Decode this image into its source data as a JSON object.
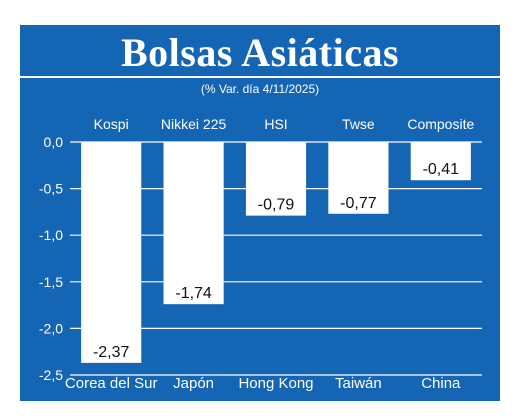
{
  "header": {
    "title": "Bolsas Asiáticas",
    "subtitle": "(% Var. día  4/11/2025)"
  },
  "colors": {
    "background": "#1565b5",
    "bar": "#ffffff",
    "grid": "#ffffff",
    "text": "#ffffff",
    "value_text": "#111111"
  },
  "chart_data": {
    "type": "bar",
    "title": "Bolsas Asiáticas",
    "subtitle": "(% Var. día  4/11/2025)",
    "indices": [
      "Kospi",
      "Nikkei 225",
      "HSI",
      "Twse",
      "Composite"
    ],
    "categories": [
      "Corea del Sur",
      "Japón",
      "Hong Kong",
      "Taiwán",
      "China"
    ],
    "values": [
      -2.37,
      -1.74,
      -0.79,
      -0.77,
      -0.41
    ],
    "value_labels": [
      "-2,37",
      "-1,74",
      "-0,79",
      "-0,77",
      "-0,41"
    ],
    "yticks": [
      0.0,
      -0.5,
      -1.0,
      -1.5,
      -2.0,
      -2.5
    ],
    "ytick_labels": [
      "0,0",
      "-0,5",
      "-1,0",
      "-1,5",
      "-2,0",
      "-2,5"
    ],
    "ylim": [
      -2.5,
      0
    ],
    "grid": true,
    "legend": "none"
  }
}
